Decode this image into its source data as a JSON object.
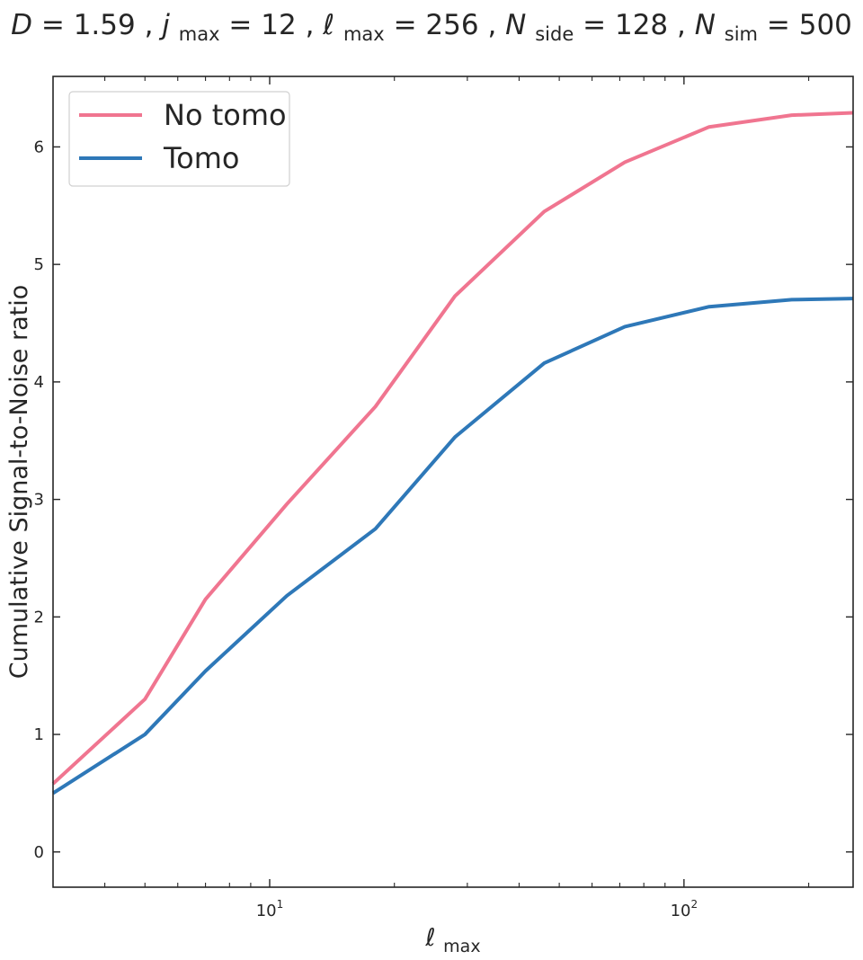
{
  "chart_data": {
    "type": "line",
    "title": {
      "D_label": "D",
      "D_value": "1.59",
      "j_label": "j",
      "j_sub": "max",
      "j_value": "12",
      "l_label": "ℓ",
      "l_sub": "max",
      "l_value": "256",
      "nside_label": "N",
      "nside_sub": "side",
      "nside_value": "128",
      "nsim_label": "N",
      "nsim_sub": "sim",
      "nsim_value": "500"
    },
    "xlabel": {
      "main": "ℓ",
      "sub": "max"
    },
    "ylabel": "Cumulative Signal-to-Noise ratio",
    "xscale": "log",
    "xlim": [
      3,
      256
    ],
    "ylim": [
      -0.3,
      6.6
    ],
    "yticks": [
      "0",
      "1",
      "2",
      "3",
      "4",
      "5",
      "6"
    ],
    "xticks": [
      {
        "base": "10",
        "exp": "1",
        "value": 10
      },
      {
        "base": "10",
        "exp": "2",
        "value": 100
      }
    ],
    "x": [
      3,
      5,
      7,
      11,
      18,
      28,
      46,
      72,
      115,
      182,
      256
    ],
    "series": [
      {
        "name": "No tomo",
        "color": "#f07590",
        "values": [
          0.58,
          1.3,
          2.15,
          2.96,
          3.79,
          4.73,
          5.45,
          5.87,
          6.17,
          6.27,
          6.29
        ]
      },
      {
        "name": "Tomo",
        "color": "#2e78b8",
        "values": [
          0.5,
          1.0,
          1.54,
          2.18,
          2.75,
          3.53,
          4.16,
          4.47,
          4.64,
          4.7,
          4.71
        ]
      }
    ],
    "legend": "top-left",
    "grid": false
  }
}
